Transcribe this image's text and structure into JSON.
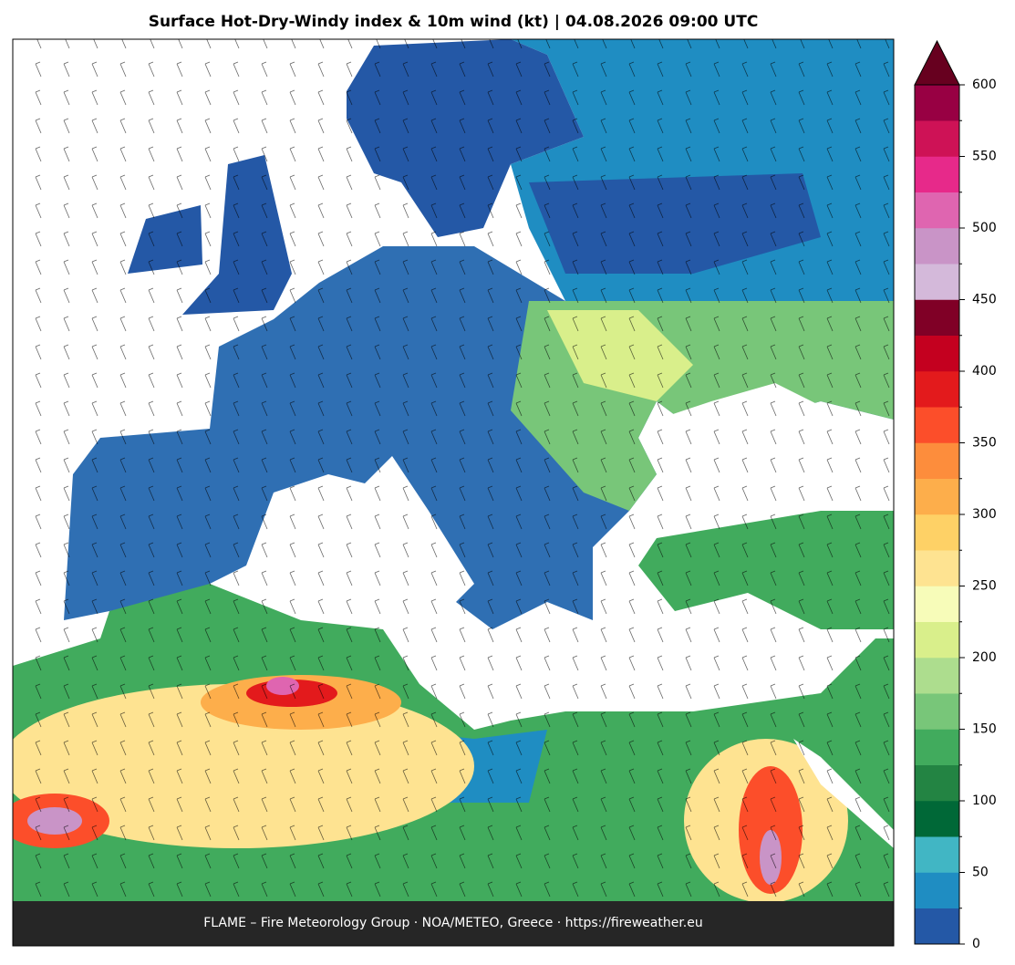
{
  "title": "Surface Hot-Dry-Windy index & 10m wind (kt)  |  04.08.2026 09:00 UTC",
  "footer": "FLAME – Fire Meteorology Group · NOA/METEO, Greece · https://fireweather.eu",
  "colorbar": {
    "levels": [
      0,
      25,
      50,
      75,
      100,
      125,
      150,
      175,
      200,
      225,
      250,
      275,
      300,
      325,
      350,
      375,
      400,
      425,
      450,
      475,
      500,
      525,
      550,
      575,
      600
    ],
    "colors": [
      "#2458a6",
      "#1f8dc2",
      "#41b6c4",
      "#006837",
      "#238443",
      "#41ab5d",
      "#78c679",
      "#addd8e",
      "#d9ef8b",
      "#f7fcb9",
      "#fee391",
      "#fed166",
      "#fdae4b",
      "#fd8d3c",
      "#fc4e2a",
      "#e31a1c",
      "#c4001f",
      "#800026",
      "#d4b9da",
      "#c994c7",
      "#df65b0",
      "#e7298a",
      "#ce1256",
      "#980043"
    ],
    "over_color": "#67001f",
    "ticks": [
      0,
      50,
      100,
      150,
      200,
      250,
      300,
      350,
      400,
      450,
      500,
      550,
      600
    ]
  }
}
